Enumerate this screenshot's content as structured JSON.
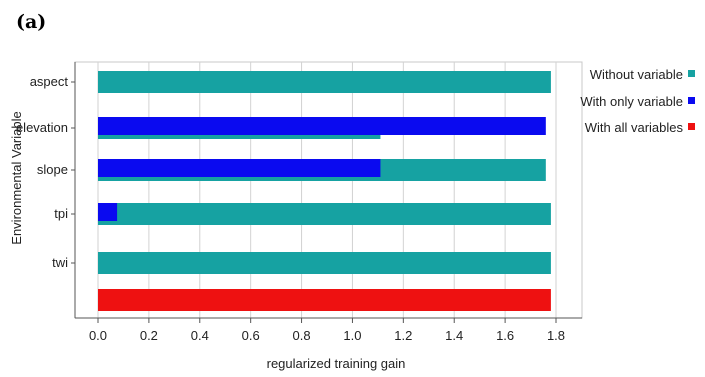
{
  "panel_label": "(a)",
  "chart_data": {
    "type": "bar",
    "orientation": "horizontal",
    "xlabel": "regularized training gain",
    "ylabel": "Environmental Variable",
    "xlim": [
      -0.1,
      1.85
    ],
    "xticks": [
      "0.0",
      "0.2",
      "0.4",
      "0.6",
      "0.8",
      "1.0",
      "1.2",
      "1.4",
      "1.6",
      "1.8"
    ],
    "grid": true,
    "legend_position": "right",
    "categories": [
      "aspect",
      "elevation",
      "slope",
      "tpi",
      "twi",
      ""
    ],
    "series": [
      {
        "name": "Without variable",
        "color": "#16a2a2",
        "values": [
          1.78,
          1.11,
          1.76,
          1.78,
          1.78,
          null
        ]
      },
      {
        "name": "With only variable",
        "color": "#0a0af0",
        "values": [
          0.0,
          1.76,
          1.11,
          0.075,
          0.0,
          null
        ]
      },
      {
        "name": "With all variables",
        "color": "#ee1111",
        "values": [
          null,
          null,
          null,
          null,
          null,
          1.78
        ]
      }
    ]
  }
}
